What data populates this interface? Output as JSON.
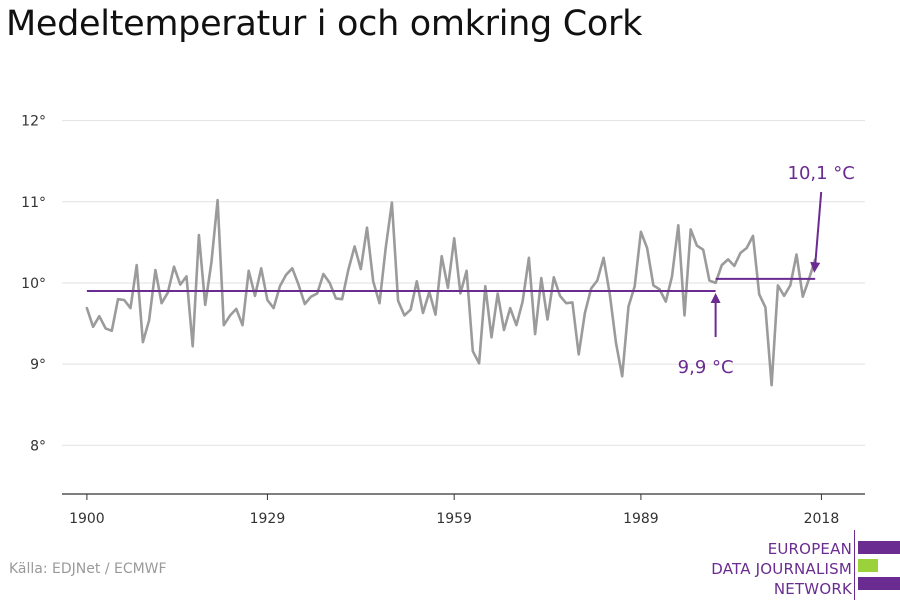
{
  "chart_data": {
    "type": "line",
    "title": "Medeltemperatur i och omkring Cork",
    "xlabel": "",
    "ylabel": "",
    "xlim": [
      1896,
      2025
    ],
    "ylim": [
      7.4,
      12.5
    ],
    "x_ticks": [
      1900,
      1929,
      1959,
      1989,
      2018
    ],
    "x_tick_labels": [
      "1900",
      "1929",
      "1959",
      "1989",
      "2018"
    ],
    "y_ticks": [
      8,
      9,
      10,
      11,
      12
    ],
    "y_tick_labels": [
      "8°",
      "9°",
      "10°",
      "11°",
      "12°"
    ],
    "grid": "horizontal",
    "series": [
      {
        "color": "#9b9b9b",
        "x_start": 1900,
        "values": [
          9.69,
          9.46,
          9.59,
          9.44,
          9.41,
          9.8,
          9.79,
          9.69,
          10.22,
          9.27,
          9.54,
          10.16,
          9.75,
          9.88,
          10.2,
          9.98,
          10.08,
          9.22,
          10.59,
          9.73,
          10.25,
          11.02,
          9.48,
          9.6,
          9.68,
          9.48,
          10.15,
          9.84,
          10.18,
          9.79,
          9.69,
          9.96,
          10.1,
          10.18,
          9.98,
          9.74,
          9.83,
          9.87,
          10.11,
          10.0,
          9.81,
          9.8,
          10.16,
          10.45,
          10.17,
          10.68,
          10.02,
          9.75,
          10.43,
          10.99,
          9.78,
          9.6,
          9.67,
          10.02,
          9.63,
          9.89,
          9.61,
          10.33,
          9.94,
          10.55,
          9.87,
          10.15,
          9.16,
          9.01,
          9.96,
          9.33,
          9.87,
          9.42,
          9.69,
          9.48,
          9.77,
          10.31,
          9.37,
          10.06,
          9.55,
          10.07,
          9.84,
          9.75,
          9.76,
          9.12,
          9.63,
          9.93,
          10.03,
          10.31,
          9.86,
          9.26,
          8.85,
          9.71,
          9.96,
          10.63,
          10.43,
          9.97,
          9.92,
          9.77,
          10.08,
          10.71,
          9.6,
          10.66,
          10.46,
          10.41,
          10.03,
          10.0,
          10.22,
          10.29,
          10.21,
          10.37,
          10.43,
          10.58,
          9.86,
          9.7,
          8.74,
          9.97,
          9.84,
          9.97,
          10.35,
          9.83,
          10.05,
          10.29
        ]
      }
    ],
    "reference_lines": [
      {
        "label": "9,9 °C",
        "value": 9.9,
        "x_from": 1900,
        "x_to": 2001,
        "color": "#6a2c91"
      },
      {
        "label": "10,1 °C",
        "value": 10.05,
        "x_from": 2001,
        "x_to": 2017,
        "color": "#6a2c91"
      }
    ],
    "annotations": [
      {
        "text": "9,9 °C",
        "x": 2001,
        "y": 9.9
      },
      {
        "text": "10,1 °C",
        "x": 2017,
        "y": 10.1
      }
    ]
  },
  "source": "Källa: EDJNet / ECMWF",
  "logo": {
    "lines": [
      "EUROPEAN",
      "DATA JOURNALISM",
      "NETWORK"
    ],
    "purple": "#6a2c91",
    "green": "#9bd23c"
  }
}
